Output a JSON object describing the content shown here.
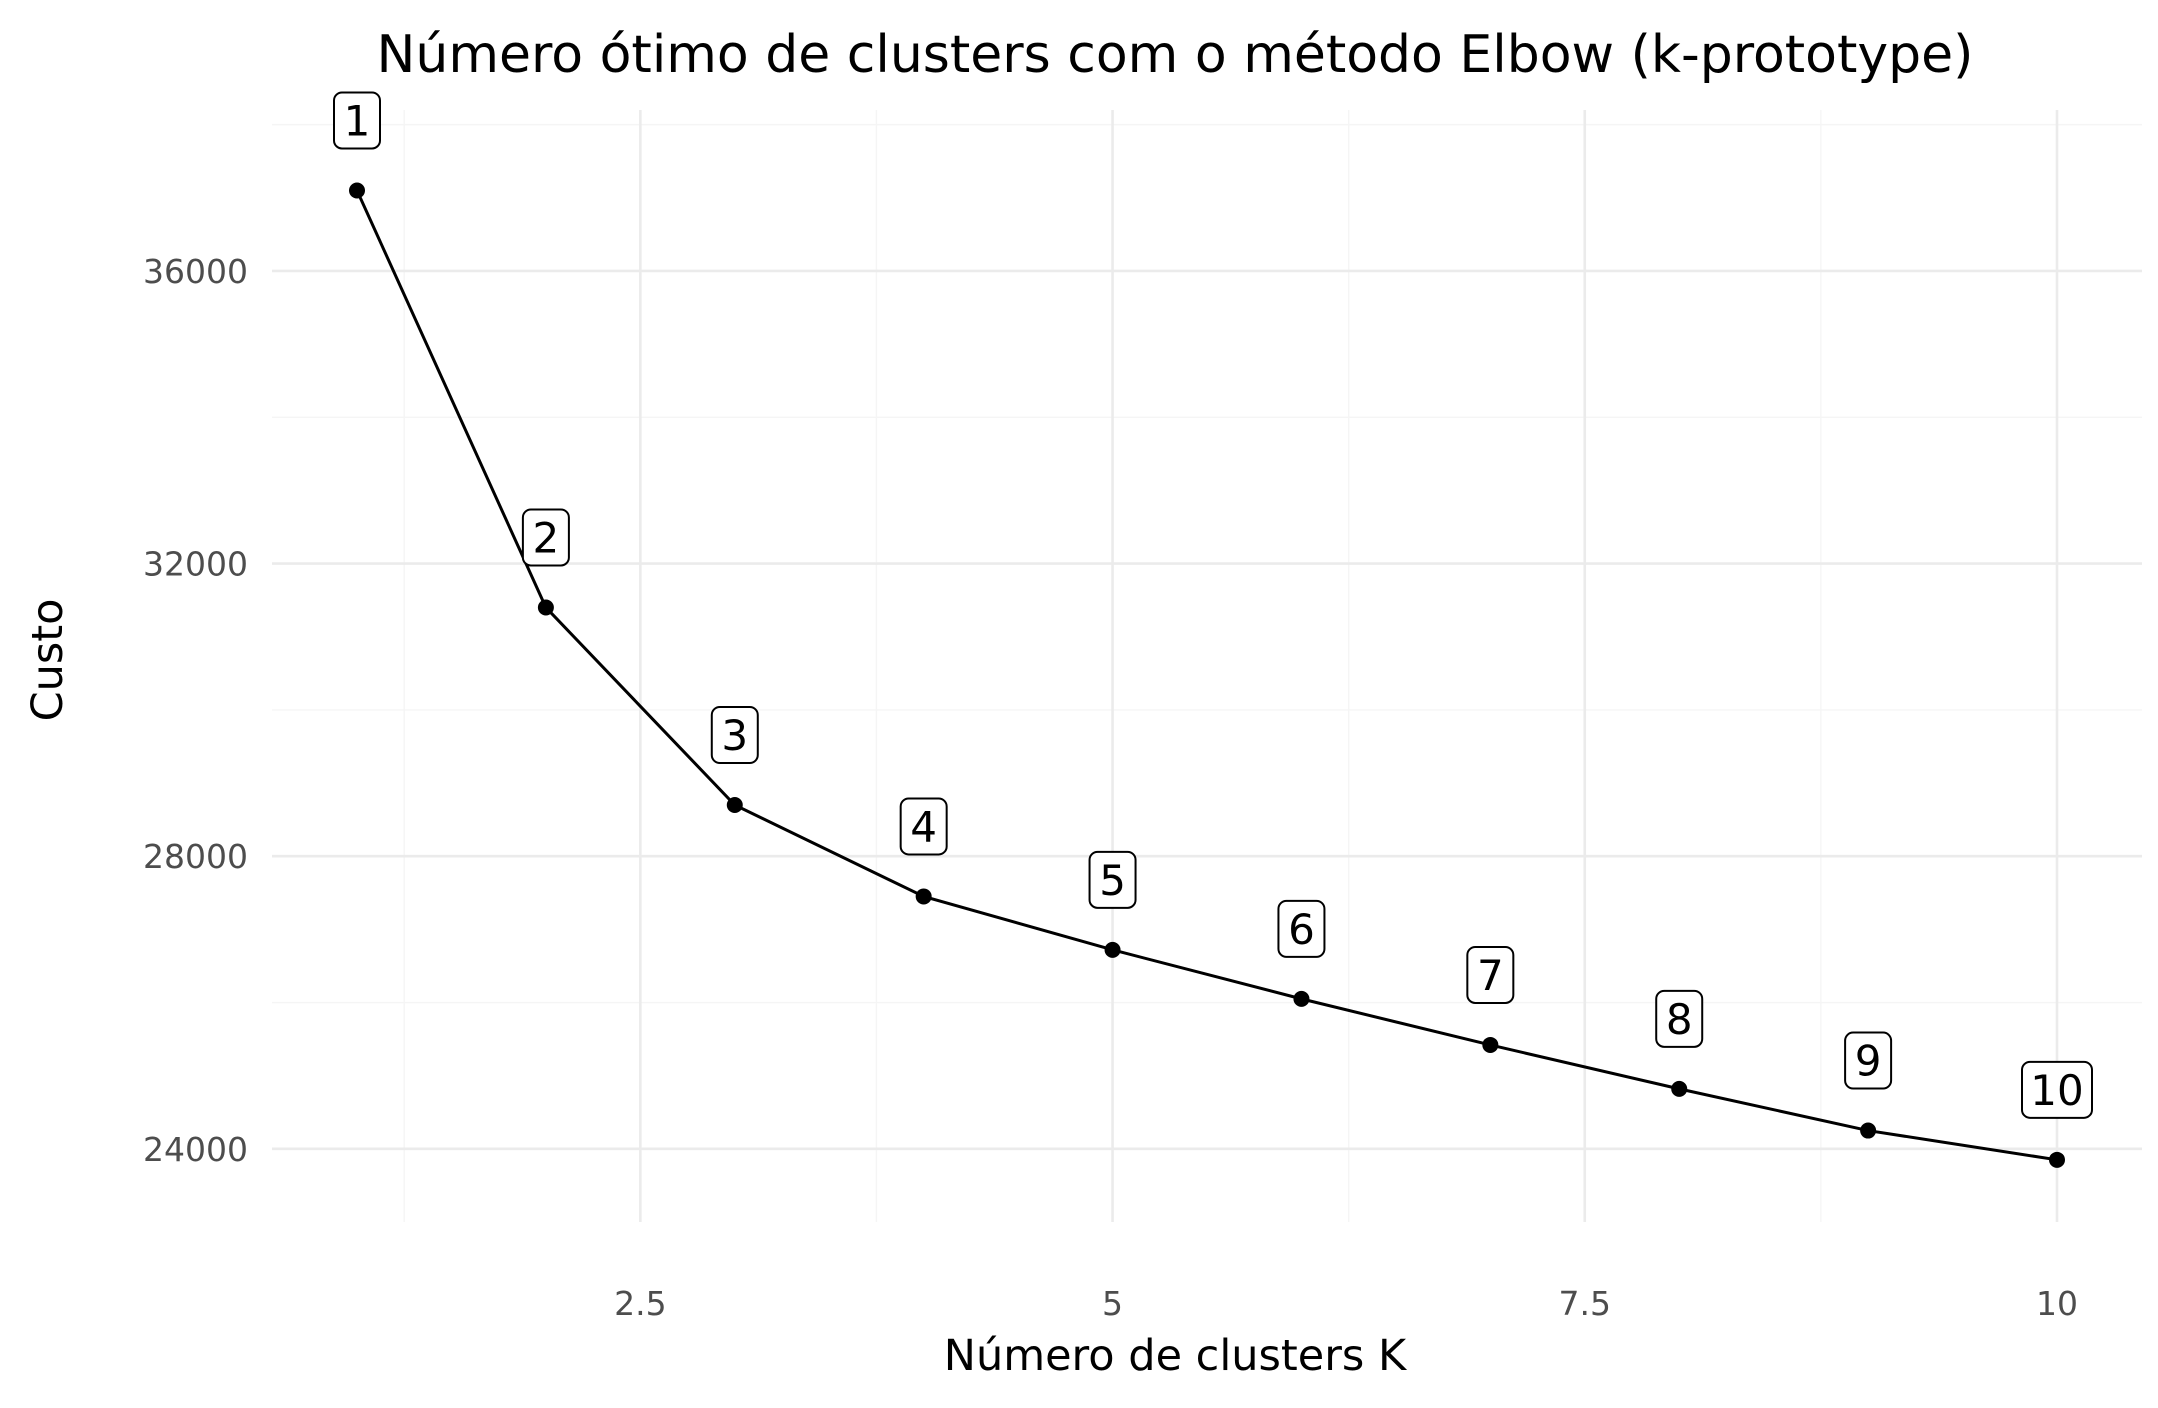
{
  "chart_data": {
    "type": "line",
    "title": "Número ótimo de clusters com o método Elbow (k-prototype)",
    "xlabel": "Número de clusters K",
    "ylabel": "Custo",
    "x": [
      1,
      2,
      3,
      4,
      5,
      6,
      7,
      8,
      9,
      10
    ],
    "y": [
      37100,
      31400,
      28700,
      27450,
      26720,
      26050,
      25420,
      24820,
      24250,
      23850
    ],
    "point_labels": [
      "1",
      "2",
      "3",
      "4",
      "5",
      "6",
      "7",
      "8",
      "9",
      "10"
    ],
    "x_ticks": [
      2.5,
      5,
      7.5,
      10
    ],
    "x_tick_labels": [
      "2.5",
      "5",
      "7.5",
      "10"
    ],
    "y_ticks": [
      24000,
      28000,
      32000,
      36000
    ],
    "y_tick_labels": [
      "24000",
      "28000",
      "32000",
      "36000"
    ],
    "xlim": [
      0.55,
      10.45
    ],
    "ylim": [
      23000,
      38200
    ],
    "grid": true,
    "legend": "none",
    "colors": {
      "line": "#000000",
      "grid": "#ebebeb",
      "tick_text": "#4d4d4d",
      "background": "#ffffff"
    }
  }
}
